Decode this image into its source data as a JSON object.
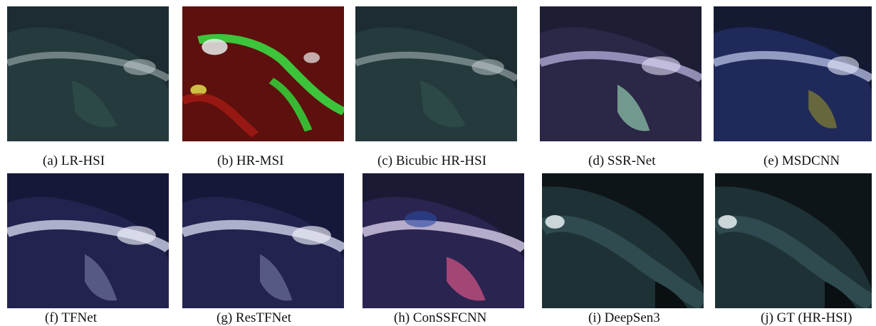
{
  "figure": {
    "panels": [
      {
        "id": "a",
        "label": "(a) LR-HSI",
        "scheme": "teal-dim"
      },
      {
        "id": "b",
        "label": "(b) HR-MSI",
        "scheme": "red-green"
      },
      {
        "id": "c",
        "label": "(c) Bicubic HR-HSI",
        "scheme": "teal-dim"
      },
      {
        "id": "d",
        "label": "(d) SSR-Net",
        "scheme": "purple-mint"
      },
      {
        "id": "e",
        "label": "(e) MSDCNN",
        "scheme": "blue-olive"
      },
      {
        "id": "f",
        "label": "(f) TFNet",
        "scheme": "navy-bright"
      },
      {
        "id": "g",
        "label": "(g) ResTFNet",
        "scheme": "navy-bright"
      },
      {
        "id": "h",
        "label": "(h) ConSSFCNN",
        "scheme": "purple-pink"
      },
      {
        "id": "i",
        "label": "(i) DeepSen3",
        "scheme": "dark-teal"
      },
      {
        "id": "j",
        "label": "(j) GT (HR-HSI)",
        "scheme": "dark-teal"
      }
    ]
  }
}
